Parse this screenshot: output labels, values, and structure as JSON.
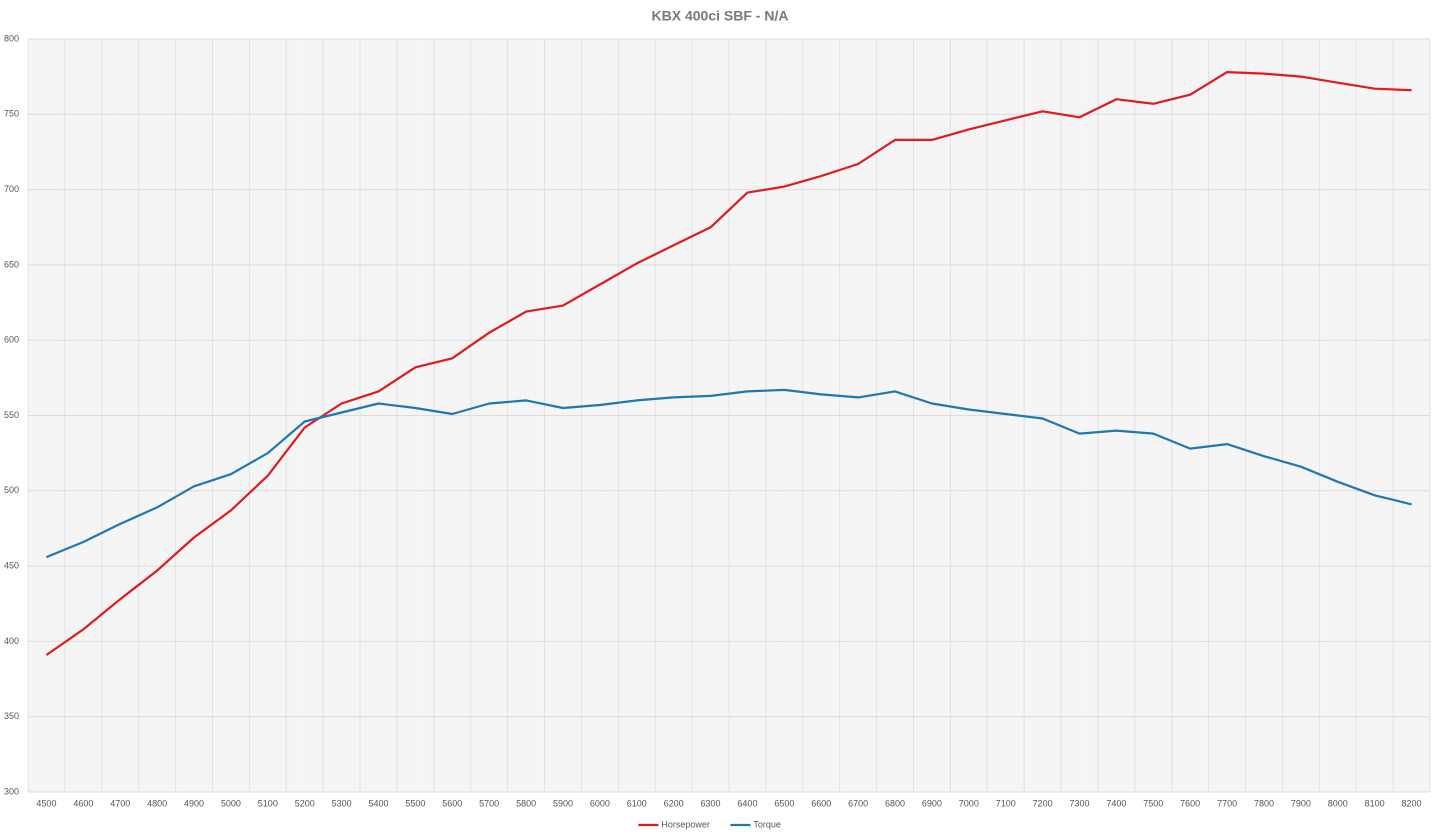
{
  "chart_data": {
    "type": "line",
    "title": "KBX 400ci SBF - N/A",
    "categories": [
      "4500",
      "4600",
      "4700",
      "4800",
      "4900",
      "5000",
      "5100",
      "5200",
      "5300",
      "5400",
      "5500",
      "5600",
      "5700",
      "5800",
      "5900",
      "6000",
      "6100",
      "6200",
      "6300",
      "6400",
      "6500",
      "6600",
      "6700",
      "6800",
      "6900",
      "7000",
      "7100",
      "7200",
      "7300",
      "7400",
      "7500",
      "7600",
      "7700",
      "7800",
      "7900",
      "8000",
      "8100",
      "8200"
    ],
    "series": [
      {
        "name": "Horsepower",
        "color": "#e3191c",
        "values": [
          391,
          408,
          428,
          447,
          469,
          487,
          510,
          542,
          558,
          566,
          582,
          588,
          605,
          619,
          623,
          637,
          651,
          663,
          675,
          698,
          702,
          709,
          717,
          733,
          733,
          740,
          746,
          752,
          748,
          760,
          757,
          763,
          778,
          777,
          775,
          771,
          767,
          766
        ]
      },
      {
        "name": "Torque",
        "color": "#1f77b4",
        "values": [
          456,
          466,
          478,
          489,
          503,
          511,
          525,
          546,
          552,
          558,
          555,
          551,
          558,
          560,
          555,
          557,
          560,
          562,
          563,
          566,
          567,
          564,
          562,
          566,
          558,
          554,
          551,
          548,
          538,
          540,
          538,
          528,
          531,
          523,
          516,
          506,
          497,
          491
        ]
      }
    ],
    "ylim": [
      300,
      800
    ],
    "yticks": [
      300,
      350,
      400,
      450,
      500,
      550,
      600,
      650,
      700,
      750,
      800
    ],
    "grid": true,
    "legend": "bottom"
  }
}
